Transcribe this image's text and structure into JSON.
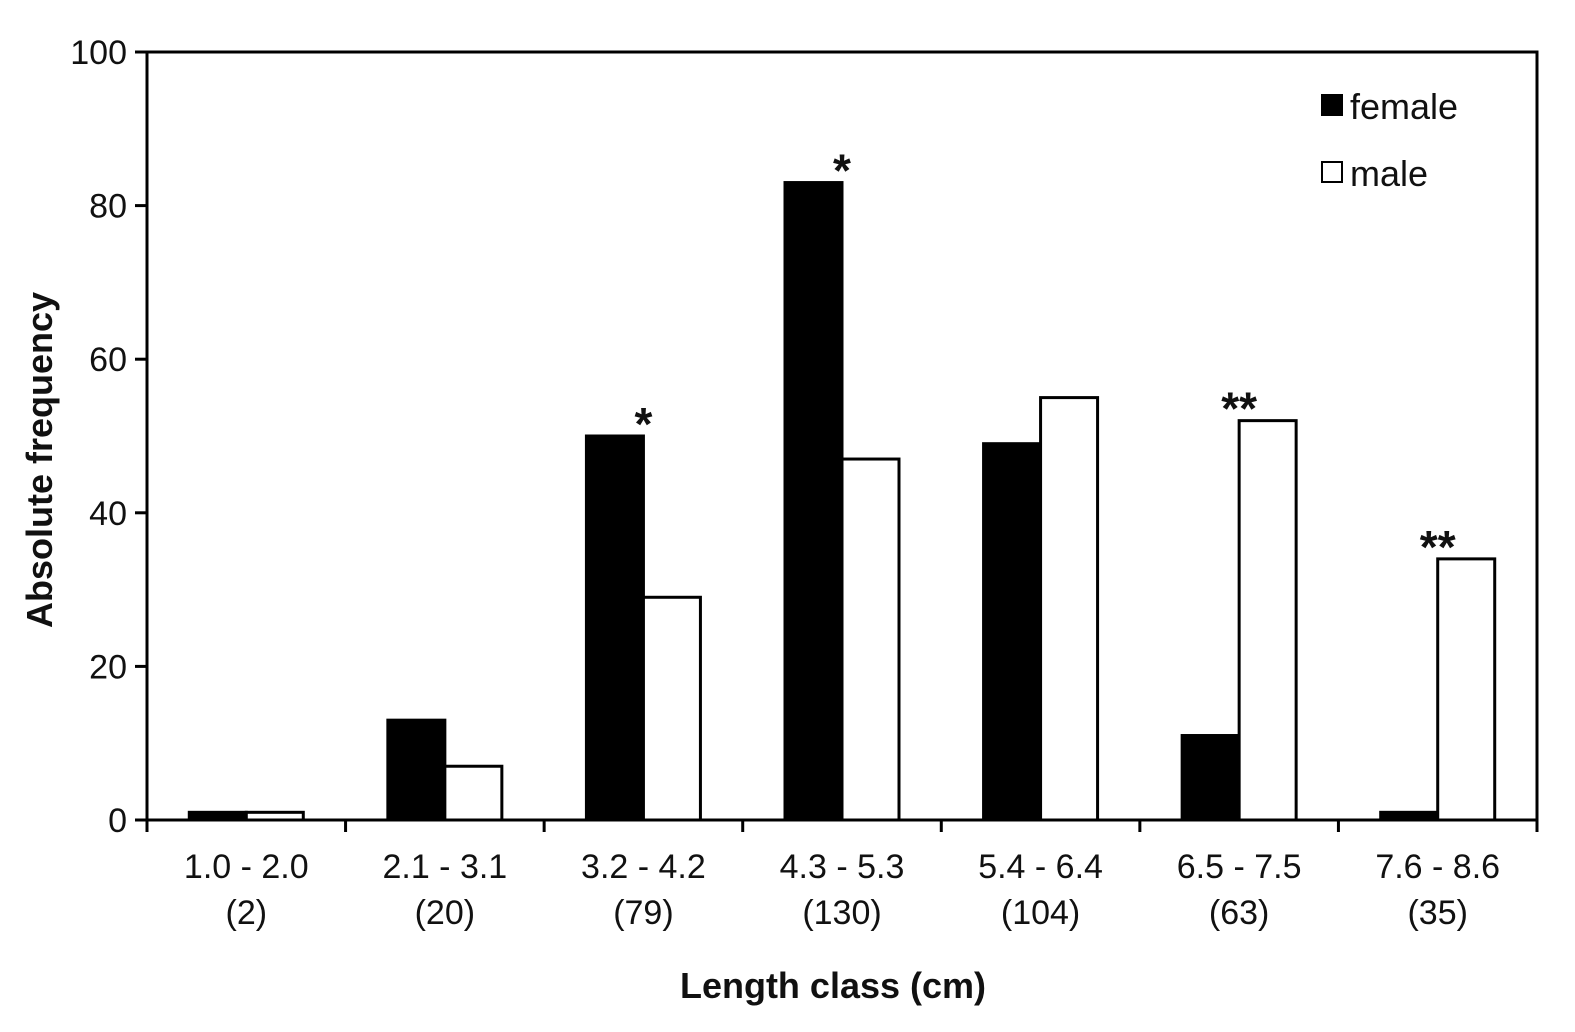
{
  "chart_data": {
    "type": "bar",
    "title": "",
    "xlabel": "Length class (cm)",
    "ylabel": "Absolute frequency",
    "ylim": [
      0,
      100
    ],
    "yticks": [
      0,
      20,
      40,
      60,
      80,
      100
    ],
    "categories": [
      {
        "range": "1.0 - 2.0",
        "n": "(2)"
      },
      {
        "range": "2.1 - 3.1",
        "n": "(20)"
      },
      {
        "range": "3.2 - 4.2",
        "n": "(79)"
      },
      {
        "range": "4.3 - 5.3",
        "n": "(130)"
      },
      {
        "range": "5.4 - 6.4",
        "n": "(104)"
      },
      {
        "range": "6.5 - 7.5",
        "n": "(63)"
      },
      {
        "range": "7.6 - 8.6",
        "n": "(35)"
      }
    ],
    "series": [
      {
        "name": "female",
        "color": "#000000",
        "values": [
          1,
          13,
          50,
          83,
          49,
          11,
          1
        ]
      },
      {
        "name": "male",
        "color": "#ffffff",
        "values": [
          1,
          7,
          29,
          47,
          55,
          52,
          34
        ]
      }
    ],
    "annotations": [
      {
        "category_index": 2,
        "text": "*",
        "y": 50
      },
      {
        "category_index": 3,
        "text": "*",
        "y": 83
      },
      {
        "category_index": 5,
        "text": "**",
        "y": 52
      },
      {
        "category_index": 6,
        "text": "**",
        "y": 34
      }
    ],
    "legend": {
      "position": "top-right"
    },
    "grid": false
  }
}
